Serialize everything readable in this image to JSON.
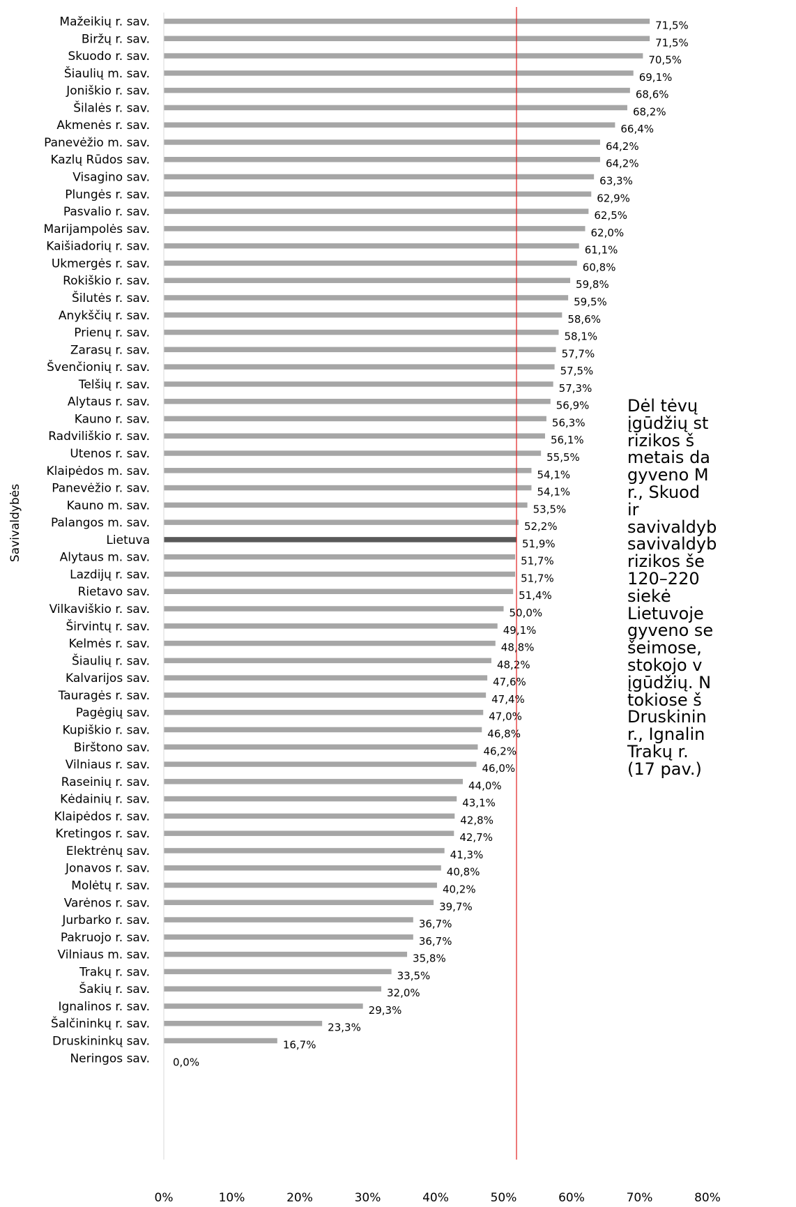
{
  "chart_data": {
    "type": "bar",
    "orientation": "horizontal",
    "ylabel": "Savivaldybės",
    "xlim": [
      0,
      80
    ],
    "x_ticks": [
      "0%",
      "10%",
      "20%",
      "30%",
      "40%",
      "50%",
      "60%",
      "70%",
      "80%"
    ],
    "reference_line": {
      "value": 51.9,
      "color": "#e02020"
    },
    "bar_color": "#a6a6a6",
    "highlight_color": "#595959",
    "highlight_category": "Lietuva",
    "grid": false,
    "categories": [
      "Mažeikių r. sav.",
      "Biržų r. sav.",
      "Skuodo r. sav.",
      "Šiaulių m. sav.",
      "Joniškio r. sav.",
      "Šilalės r. sav.",
      "Akmenės r. sav.",
      "Panevėžio m. sav.",
      "Kazlų Rūdos sav.",
      "Visagino sav.",
      "Plungės r. sav.",
      "Pasvalio r. sav.",
      "Marijampolės sav.",
      "Kaišiadorių r. sav.",
      "Ukmergės r. sav.",
      "Rokiškio r. sav.",
      "Šilutės r. sav.",
      "Anykščių r. sav.",
      "Prienų r. sav.",
      "Zarasų r. sav.",
      "Švenčionių r. sav.",
      "Telšių r. sav.",
      "Alytaus r. sav.",
      "Kauno r. sav.",
      "Radviliškio r. sav.",
      "Utenos r. sav.",
      "Klaipėdos m. sav.",
      "Panevėžio r. sav.",
      "Kauno m. sav.",
      "Palangos m. sav.",
      "Lietuva",
      "Alytaus m. sav.",
      "Lazdijų r. sav.",
      "Rietavo sav.",
      "Vilkaviškio r. sav.",
      "Širvintų r. sav.",
      "Kelmės r. sav.",
      "Šiaulių r. sav.",
      "Kalvarijos sav.",
      "Tauragės r. sav.",
      "Pagėgių sav.",
      "Kupiškio r. sav.",
      "Birštono sav.",
      "Vilniaus r. sav.",
      "Raseinių r. sav.",
      "Kėdainių r. sav.",
      "Klaipėdos r. sav.",
      "Kretingos r. sav.",
      "Elektrėnų sav.",
      "Jonavos r. sav.",
      "Molėtų r. sav.",
      "Varėnos r. sav.",
      "Jurbarko r. sav.",
      "Pakruojo r. sav.",
      "Vilniaus m. sav.",
      "Trakų r. sav.",
      "Šakių r. sav.",
      "Ignalinos r. sav.",
      "Šalčininkų r. sav.",
      "Druskininkų sav.",
      "Neringos sav."
    ],
    "values": [
      71.5,
      71.5,
      70.5,
      69.1,
      68.6,
      68.2,
      66.4,
      64.2,
      64.2,
      63.3,
      62.9,
      62.5,
      62.0,
      61.1,
      60.8,
      59.8,
      59.5,
      58.6,
      58.1,
      57.7,
      57.5,
      57.3,
      56.9,
      56.3,
      56.1,
      55.5,
      54.1,
      54.1,
      53.5,
      52.2,
      51.9,
      51.7,
      51.7,
      51.4,
      50.0,
      49.1,
      48.8,
      48.2,
      47.6,
      47.4,
      47.0,
      46.8,
      46.2,
      46.0,
      44.0,
      43.1,
      42.8,
      42.7,
      41.3,
      40.8,
      40.2,
      39.7,
      36.7,
      36.7,
      35.8,
      33.5,
      32.0,
      29.3,
      23.3,
      16.7,
      0.0
    ],
    "value_labels": [
      "71,5%",
      "71,5%",
      "70,5%",
      "69,1%",
      "68,6%",
      "68,2%",
      "66,4%",
      "64,2%",
      "64,2%",
      "63,3%",
      "62,9%",
      "62,5%",
      "62,0%",
      "61,1%",
      "60,8%",
      "59,8%",
      "59,5%",
      "58,6%",
      "58,1%",
      "57,7%",
      "57,5%",
      "57,3%",
      "56,9%",
      "56,3%",
      "56,1%",
      "55,5%",
      "54,1%",
      "54,1%",
      "53,5%",
      "52,2%",
      "51,9%",
      "51,7%",
      "51,7%",
      "51,4%",
      "50,0%",
      "49,1%",
      "48,8%",
      "48,2%",
      "47,6%",
      "47,4%",
      "47,0%",
      "46,8%",
      "46,2%",
      "46,0%",
      "44,0%",
      "43,1%",
      "42,8%",
      "42,7%",
      "41,3%",
      "40,8%",
      "40,2%",
      "39,7%",
      "36,7%",
      "36,7%",
      "35,8%",
      "33,5%",
      "32,0%",
      "29,3%",
      "23,3%",
      "16,7%",
      "0,0%"
    ]
  },
  "side_text": {
    "lines": [
      "Dėl tėvų ",
      "įgūdžių st",
      "rizikos   š",
      "metais da",
      "gyveno M",
      "r., Skuod",
      "ir",
      "savivaldyb",
      "savivaldyb",
      "rizikos  še",
      "120–220 ",
      "siekė",
      "Lietuvoje",
      "gyveno se",
      "šeimose, ",
      "stokojo  v",
      "įgūdžių.  N",
      "tokiose  š",
      "Druskinin",
      "r., Ignalin",
      "Trakų   r.",
      "(17 pav.)"
    ]
  }
}
